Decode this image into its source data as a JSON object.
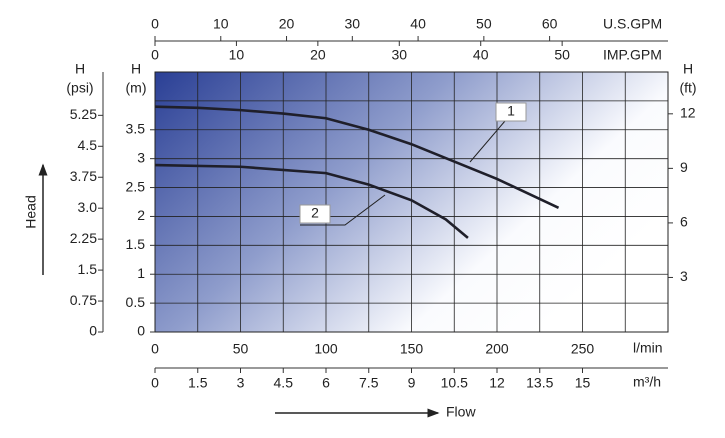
{
  "chart_data": {
    "type": "line",
    "x_label": "l/min",
    "xlim": [
      0,
      300
    ],
    "xticks": [
      0,
      50,
      100,
      150,
      200,
      250
    ],
    "xgrid": [
      0,
      25,
      50,
      75,
      100,
      125,
      150,
      175,
      200,
      225,
      250,
      275,
      300
    ],
    "y_label_top": "H",
    "y_label": "(m)",
    "ylim": [
      0,
      4.5
    ],
    "yticks": [
      0,
      0.5,
      1,
      1.5,
      2,
      2.5,
      3,
      3.5
    ],
    "ygrid": [
      0,
      0.5,
      1,
      1.5,
      2,
      2.5,
      3,
      3.5,
      4,
      4.5
    ],
    "psi_axis": {
      "label_top": "H",
      "label": "(psi)",
      "lim": [
        0,
        6.3
      ],
      "ticks": [
        0,
        0.75,
        1.5,
        2.25,
        {
          "value": 3,
          "label": "3.0"
        },
        3.75,
        4.5,
        5.25
      ]
    },
    "y2_label_top": "H",
    "y2_label": "(ft)",
    "y2lim": [
      0,
      14.3
    ],
    "y2ticks": [
      3,
      6,
      9,
      12
    ],
    "us_gpm_axis": {
      "label": "U.S.GPM",
      "lim": [
        0,
        78
      ],
      "ticks": [
        0,
        10,
        20,
        30,
        40,
        50,
        60
      ]
    },
    "imp_gpm_axis": {
      "label": "IMP.GPM",
      "lim": [
        0,
        63
      ],
      "ticks": [
        0,
        10,
        20,
        30,
        40,
        50
      ]
    },
    "m3h_axis": {
      "label": "m³/h",
      "lim": [
        0,
        18
      ],
      "ticks": [
        0,
        1.5,
        3,
        4.5,
        6,
        7.5,
        9,
        10.5,
        12,
        13.5,
        15
      ]
    },
    "y_title": "Head",
    "x_title": "Flow",
    "series": [
      {
        "name": "1",
        "color": "#1f1f2a",
        "x": [
          0,
          25,
          50,
          75,
          100,
          125,
          150,
          175,
          200,
          236
        ],
        "values": [
          3.9,
          3.88,
          3.84,
          3.78,
          3.7,
          3.5,
          3.25,
          2.95,
          2.65,
          2.15
        ]
      },
      {
        "name": "2",
        "color": "#1f1f2a",
        "x": [
          0,
          50,
          100,
          125,
          150,
          170,
          183
        ],
        "values": [
          2.89,
          2.86,
          2.75,
          2.55,
          2.28,
          1.95,
          1.63
        ]
      }
    ]
  }
}
